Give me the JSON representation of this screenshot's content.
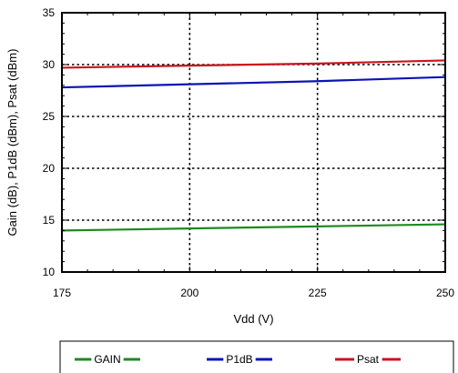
{
  "chart_data": {
    "type": "line",
    "xlabel": "Vdd (V)",
    "ylabel": "Gain (dB),  P1dB (dBm), Psat (dBm)",
    "xlim": [
      175,
      250
    ],
    "ylim": [
      10,
      35
    ],
    "xticks": [
      175,
      200,
      225,
      250
    ],
    "yticks": [
      10,
      15,
      20,
      25,
      30,
      35
    ],
    "x_tick_labels": [
      "175",
      "200",
      "225",
      "250"
    ],
    "y_tick_labels": [
      "10",
      "15",
      "20",
      "25",
      "30",
      "35"
    ],
    "grid": "dotted",
    "legend_position": "bottom",
    "x": [
      175,
      200,
      225,
      250
    ],
    "series": [
      {
        "name": "GAIN",
        "color": "#1e8a1e",
        "values": [
          14.0,
          14.2,
          14.4,
          14.6
        ]
      },
      {
        "name": "P1dB",
        "color": "#0a14b4",
        "values": [
          27.8,
          28.1,
          28.4,
          28.8
        ]
      },
      {
        "name": "Psat",
        "color": "#c8141e",
        "values": [
          29.7,
          29.9,
          30.1,
          30.4
        ]
      }
    ]
  }
}
